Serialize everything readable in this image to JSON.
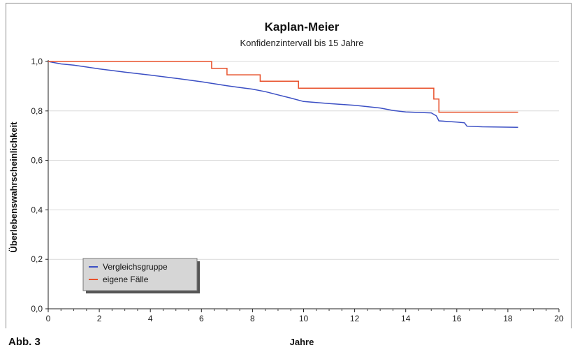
{
  "figure_label": "Abb. 3",
  "chart_data": {
    "type": "line",
    "title": "Kaplan-Meier",
    "subtitle": "Konfidenzintervall bis 15 Jahre",
    "xlabel": "Jahre",
    "ylabel": "Überlebenswahrscheinlichkeit",
    "xlim": [
      0,
      20
    ],
    "ylim": [
      0,
      1
    ],
    "x_ticks": [
      0,
      2,
      4,
      6,
      8,
      10,
      12,
      14,
      16,
      18,
      20
    ],
    "y_ticks": [
      0,
      0.2,
      0.4,
      0.6,
      0.8,
      1.0
    ],
    "y_tick_labels": [
      "0,0",
      "0,2",
      "0,4",
      "0,6",
      "0,8",
      "1,0"
    ],
    "grid": "horizontal",
    "legend_position": "lower-left",
    "series": [
      {
        "name": "Vergleichsgruppe",
        "color": "#3b4fc4",
        "step": false,
        "points": [
          [
            0,
            1.0
          ],
          [
            0.5,
            0.99
          ],
          [
            1,
            0.985
          ],
          [
            2,
            0.97
          ],
          [
            3,
            0.957
          ],
          [
            4,
            0.945
          ],
          [
            5,
            0.932
          ],
          [
            6,
            0.918
          ],
          [
            6.5,
            0.91
          ],
          [
            7,
            0.902
          ],
          [
            7.5,
            0.895
          ],
          [
            8,
            0.888
          ],
          [
            8.5,
            0.878
          ],
          [
            9,
            0.865
          ],
          [
            9.5,
            0.852
          ],
          [
            10,
            0.838
          ],
          [
            11,
            0.83
          ],
          [
            12,
            0.823
          ],
          [
            13,
            0.812
          ],
          [
            13.5,
            0.802
          ],
          [
            14,
            0.796
          ],
          [
            15,
            0.792
          ],
          [
            15.2,
            0.78
          ],
          [
            15.3,
            0.76
          ],
          [
            16,
            0.755
          ],
          [
            16.3,
            0.752
          ],
          [
            16.4,
            0.738
          ],
          [
            17,
            0.736
          ],
          [
            18.4,
            0.734
          ]
        ]
      },
      {
        "name": "eigene Fälle",
        "color": "#e8502b",
        "step": true,
        "points": [
          [
            0,
            1.0
          ],
          [
            6.4,
            1.0
          ],
          [
            6.4,
            0.972
          ],
          [
            7.0,
            0.972
          ],
          [
            7.0,
            0.946
          ],
          [
            8.3,
            0.946
          ],
          [
            8.3,
            0.92
          ],
          [
            9.8,
            0.92
          ],
          [
            9.8,
            0.892
          ],
          [
            15.1,
            0.892
          ],
          [
            15.1,
            0.848
          ],
          [
            15.3,
            0.848
          ],
          [
            15.3,
            0.795
          ],
          [
            18.4,
            0.795
          ]
        ]
      }
    ]
  }
}
